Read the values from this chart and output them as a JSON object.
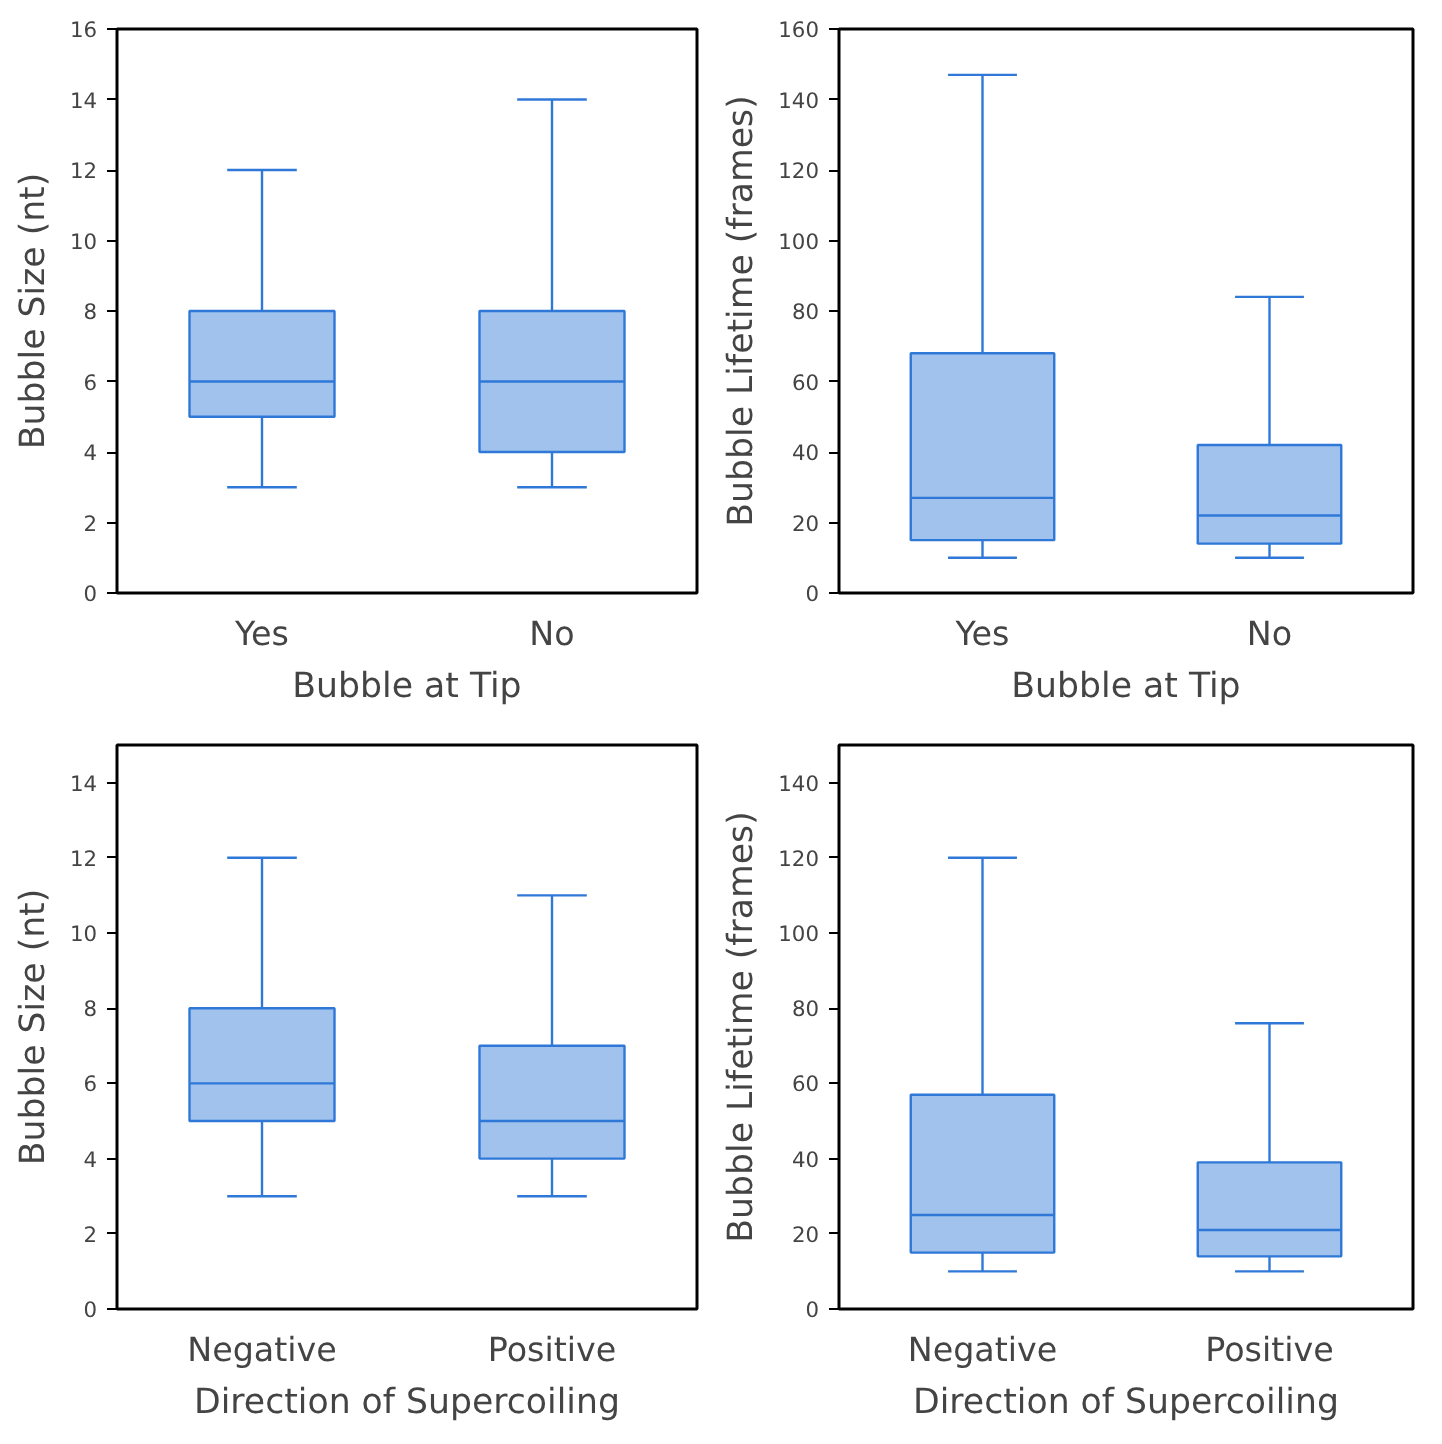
{
  "chart_data": [
    {
      "type": "box",
      "categories": [
        "Yes",
        "No"
      ],
      "xlabel": "Bubble at Tip",
      "ylabel": "Bubble Size (nt)",
      "ylim": [
        0,
        16
      ],
      "yticks": [
        0,
        2,
        4,
        6,
        8,
        10,
        12,
        14,
        16
      ],
      "grid": false,
      "series": [
        {
          "color": "#2f78d8",
          "boxes": [
            {
              "low": 3,
              "q1": 5,
              "median": 6,
              "q3": 8,
              "high": 12
            },
            {
              "low": 3,
              "q1": 4,
              "median": 6,
              "q3": 8,
              "high": 14
            }
          ]
        }
      ]
    },
    {
      "type": "box",
      "categories": [
        "Yes",
        "No"
      ],
      "xlabel": "Bubble at Tip",
      "ylabel": "Bubble Lifetime (frames)",
      "ylim": [
        0,
        160
      ],
      "yticks": [
        0,
        20,
        40,
        60,
        80,
        100,
        120,
        140,
        160
      ],
      "grid": false,
      "series": [
        {
          "color": "#2f78d8",
          "boxes": [
            {
              "low": 10,
              "q1": 15,
              "median": 27,
              "q3": 68,
              "high": 147
            },
            {
              "low": 10,
              "q1": 14,
              "median": 22,
              "q3": 42,
              "high": 84
            }
          ]
        }
      ]
    },
    {
      "type": "box",
      "categories": [
        "Negative",
        "Positive"
      ],
      "xlabel": "Direction of Supercoiling",
      "ylabel": "Bubble Size (nt)",
      "ylim": [
        0,
        15
      ],
      "yticks": [
        0,
        2,
        4,
        6,
        8,
        10,
        12,
        14
      ],
      "grid": false,
      "series": [
        {
          "color": "#2f78d8",
          "boxes": [
            {
              "low": 3,
              "q1": 5,
              "median": 6,
              "q3": 8,
              "high": 12
            },
            {
              "low": 3,
              "q1": 4,
              "median": 5,
              "q3": 7,
              "high": 11
            }
          ]
        }
      ]
    },
    {
      "type": "box",
      "categories": [
        "Negative",
        "Positive"
      ],
      "xlabel": "Direction of Supercoiling",
      "ylabel": "Bubble Lifetime (frames)",
      "ylim": [
        0,
        150
      ],
      "yticks": [
        0,
        20,
        40,
        60,
        80,
        100,
        120,
        140
      ],
      "grid": false,
      "series": [
        {
          "color": "#2f78d8",
          "boxes": [
            {
              "low": 10,
              "q1": 15,
              "median": 25,
              "q3": 57,
              "high": 120
            },
            {
              "low": 10,
              "q1": 14,
              "median": 21,
              "q3": 39,
              "high": 76
            }
          ]
        }
      ]
    }
  ]
}
